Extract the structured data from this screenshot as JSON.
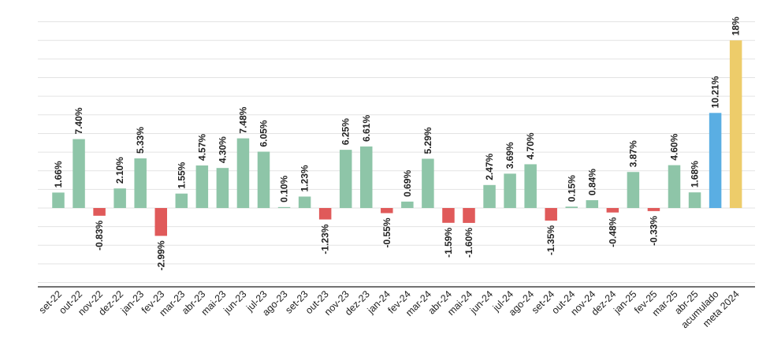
{
  "chart_data": {
    "type": "bar",
    "categories": [
      "set-22",
      "out-22",
      "nov-22",
      "dez-22",
      "jan-23",
      "fev-23",
      "mar-23",
      "abr-23",
      "mai-23",
      "jun-23",
      "jul-23",
      "ago-23",
      "set-23",
      "out-23",
      "nov-23",
      "dez-23",
      "jan-24",
      "fev-24",
      "mar-24",
      "abr-24",
      "mai-24",
      "jun-24",
      "jul-24",
      "ago-24",
      "set-24",
      "out-24",
      "nov-24",
      "dez-24",
      "jan-25",
      "fev-25",
      "mar-25",
      "abr-25",
      "acumulado",
      "meta 2024"
    ],
    "values": [
      1.66,
      7.4,
      -0.83,
      2.1,
      5.33,
      -2.99,
      1.55,
      4.57,
      4.3,
      7.48,
      6.05,
      0.1,
      1.23,
      -1.23,
      6.25,
      6.61,
      -0.55,
      0.69,
      5.29,
      -1.59,
      -1.6,
      2.47,
      3.69,
      4.7,
      -1.35,
      0.15,
      0.84,
      -0.48,
      3.87,
      -0.33,
      4.6,
      1.68,
      10.21,
      18
    ],
    "labels": [
      "1.66%",
      "7.40%",
      "-0.83%",
      "2.10%",
      "5.33%",
      "-2.99%",
      "1.55%",
      "4.57%",
      "4.30%",
      "7.48%",
      "6.05%",
      "0.10%",
      "1.23%",
      "-1.23%",
      "6.25%",
      "6.61%",
      "-0.55%",
      "0.69%",
      "5.29%",
      "-1.59%",
      "-1.60%",
      "2.47%",
      "3.69%",
      "4.70%",
      "-1.35%",
      "0.15%",
      "0.84%",
      "-0.48%",
      "3.87%",
      "-0.33%",
      "4.60%",
      "1.68%",
      "10.21%",
      "18%"
    ],
    "ylim": [
      -8,
      20
    ],
    "grid": true,
    "colors": {
      "positive": "#8ec5a8",
      "negative": "#e05a5a",
      "accumulated": "#5aaee3",
      "target": "#edcc6a",
      "grid": "#e3e3e3",
      "axis": "#444444"
    }
  }
}
